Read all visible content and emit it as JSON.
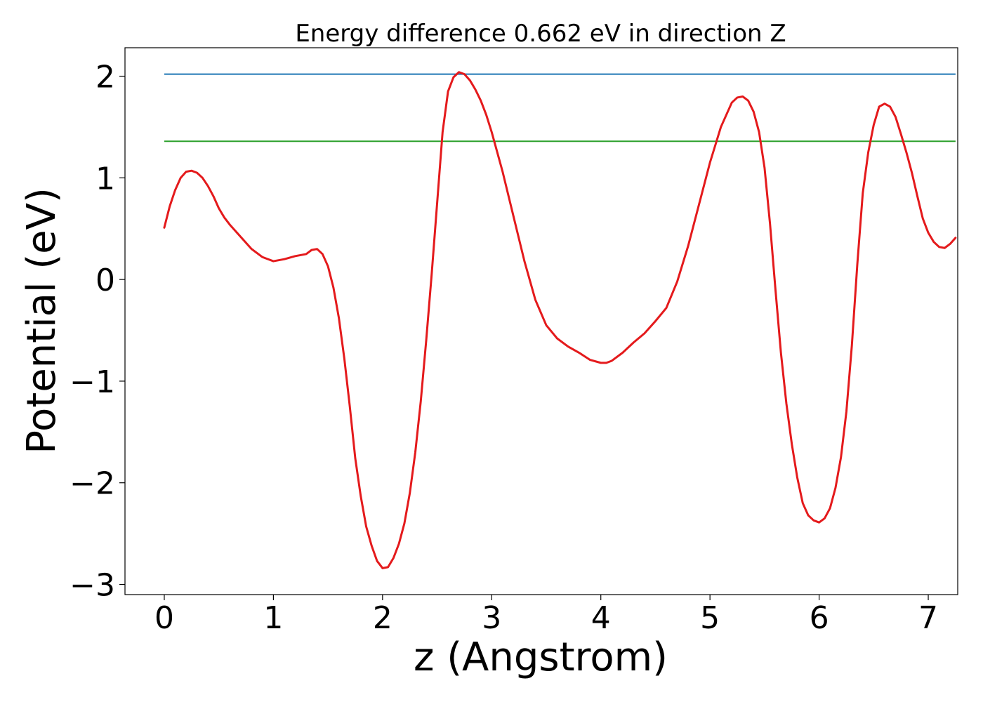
{
  "chart_data": {
    "type": "line",
    "title": "Energy difference 0.662 eV in direction Z",
    "xlabel": "z (Angstrom)",
    "ylabel": "Potential (eV)",
    "xlim": [
      -0.36,
      7.27
    ],
    "ylim": [
      -3.1,
      2.28
    ],
    "xticks": [
      0,
      1,
      2,
      3,
      4,
      5,
      6,
      7
    ],
    "yticks": [
      -3,
      -2,
      -1,
      0,
      1,
      2
    ],
    "xtick_labels": [
      "0",
      "1",
      "2",
      "3",
      "4",
      "5",
      "6",
      "7"
    ],
    "ytick_labels": [
      "−3",
      "−2",
      "−1",
      "0",
      "1",
      "2"
    ],
    "grid": false,
    "hlines": [
      {
        "y": 2.02,
        "x_range": [
          0,
          7.25
        ],
        "color": "#1f77b4"
      },
      {
        "y": 1.36,
        "x_range": [
          0,
          7.25
        ],
        "color": "#2ca02c"
      }
    ],
    "series": [
      {
        "color": "#e41a1c",
        "x": [
          0,
          0.05,
          0.1,
          0.15,
          0.2,
          0.25,
          0.3,
          0.35,
          0.4,
          0.45,
          0.5,
          0.55,
          0.6,
          0.7,
          0.8,
          0.9,
          1.0,
          1.1,
          1.2,
          1.3,
          1.35,
          1.4,
          1.45,
          1.5,
          1.55,
          1.6,
          1.65,
          1.7,
          1.75,
          1.8,
          1.85,
          1.9,
          1.95,
          2.0,
          2.05,
          2.1,
          2.15,
          2.2,
          2.25,
          2.3,
          2.35,
          2.4,
          2.45,
          2.5,
          2.55,
          2.6,
          2.65,
          2.7,
          2.75,
          2.8,
          2.85,
          2.9,
          2.95,
          3.0,
          3.1,
          3.2,
          3.3,
          3.4,
          3.5,
          3.6,
          3.7,
          3.8,
          3.9,
          4.0,
          4.05,
          4.1,
          4.2,
          4.3,
          4.4,
          4.5,
          4.6,
          4.7,
          4.8,
          4.9,
          5.0,
          5.1,
          5.2,
          5.25,
          5.3,
          5.35,
          5.4,
          5.45,
          5.5,
          5.55,
          5.6,
          5.65,
          5.7,
          5.75,
          5.8,
          5.85,
          5.9,
          5.95,
          6.0,
          6.05,
          6.1,
          6.15,
          6.2,
          6.25,
          6.3,
          6.35,
          6.4,
          6.45,
          6.5,
          6.55,
          6.6,
          6.65,
          6.7,
          6.75,
          6.8,
          6.85,
          6.9,
          6.95,
          7.0,
          7.05,
          7.1,
          7.15,
          7.2,
          7.25
        ],
        "y": [
          0.51,
          0.72,
          0.88,
          1.0,
          1.06,
          1.07,
          1.05,
          1.0,
          0.92,
          0.82,
          0.7,
          0.61,
          0.54,
          0.42,
          0.3,
          0.22,
          0.18,
          0.2,
          0.23,
          0.25,
          0.29,
          0.3,
          0.25,
          0.13,
          -0.08,
          -0.38,
          -0.78,
          -1.25,
          -1.76,
          -2.13,
          -2.43,
          -2.62,
          -2.77,
          -2.84,
          -2.83,
          -2.74,
          -2.6,
          -2.4,
          -2.1,
          -1.7,
          -1.2,
          -0.6,
          0.05,
          0.75,
          1.45,
          1.85,
          1.99,
          2.04,
          2.02,
          1.96,
          1.87,
          1.76,
          1.62,
          1.45,
          1.06,
          0.62,
          0.18,
          -0.2,
          -0.45,
          -0.58,
          -0.66,
          -0.72,
          -0.79,
          -0.82,
          -0.82,
          -0.8,
          -0.72,
          -0.62,
          -0.53,
          -0.41,
          -0.28,
          -0.02,
          0.33,
          0.74,
          1.15,
          1.5,
          1.74,
          1.79,
          1.8,
          1.76,
          1.65,
          1.45,
          1.1,
          0.55,
          -0.1,
          -0.72,
          -1.22,
          -1.62,
          -1.95,
          -2.2,
          -2.32,
          -2.37,
          -2.39,
          -2.35,
          -2.25,
          -2.05,
          -1.75,
          -1.3,
          -0.65,
          0.15,
          0.85,
          1.25,
          1.52,
          1.7,
          1.73,
          1.7,
          1.6,
          1.43,
          1.25,
          1.05,
          0.82,
          0.6,
          0.46,
          0.37,
          0.32,
          0.31,
          0.35,
          0.41
        ]
      }
    ]
  }
}
